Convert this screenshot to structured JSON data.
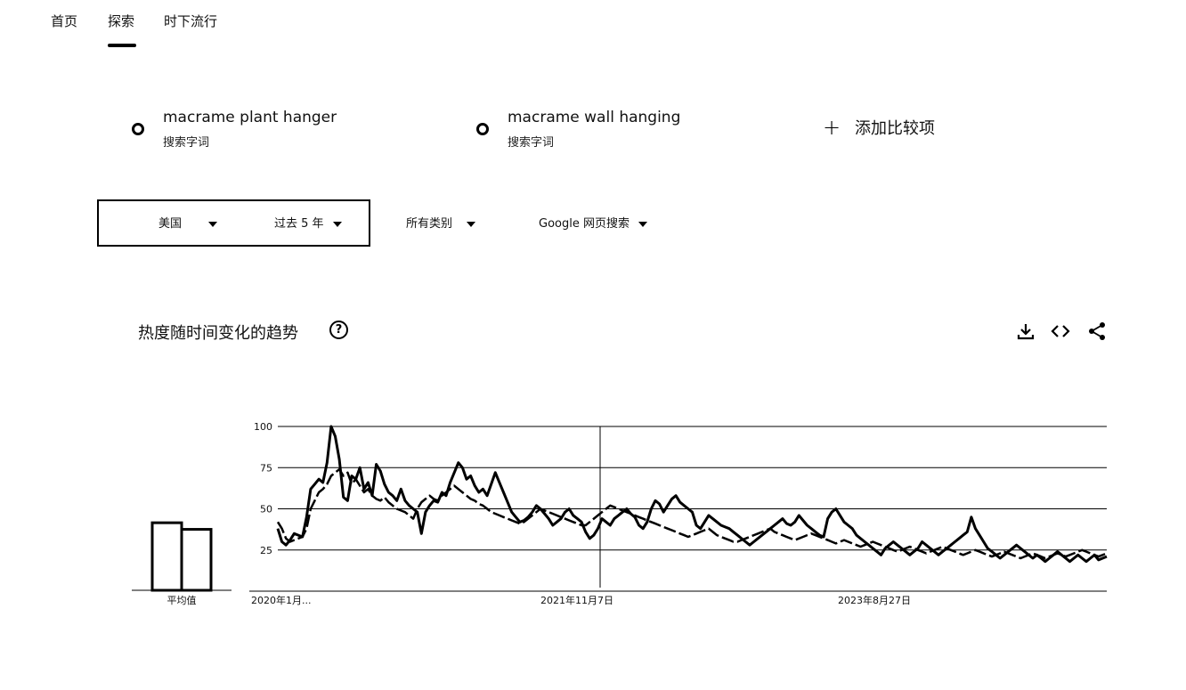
{
  "nav": {
    "home": "首页",
    "explore": "探索",
    "trending": "时下流行"
  },
  "terms": [
    {
      "name": "macrame plant hanger",
      "type": "搜索字词"
    },
    {
      "name": "macrame wall hanging",
      "type": "搜索字词"
    }
  ],
  "add_compare_label": "添加比较项",
  "filters": {
    "region": "美国",
    "time": "过去 5 年",
    "category": "所有类别",
    "search_type": "Google 网页搜索"
  },
  "section_title": "热度随时间变化的趋势",
  "help_symbol": "?",
  "icons": {
    "download": "download-icon",
    "embed": "embed-icon",
    "share": "share-icon"
  },
  "chart_data": {
    "type": "line",
    "title": "",
    "ylim": [
      0,
      100
    ],
    "y_ticks": [
      "100",
      "75",
      "50",
      "25"
    ],
    "x_tick_labels": [
      "2020年1月...",
      "2021年11月7日",
      "2023年8月27日"
    ],
    "average_label": "平均值",
    "averages": [
      {
        "series": "macrame plant hanger",
        "value": 41
      },
      {
        "series": "macrame wall hanging",
        "value": 37
      }
    ],
    "series": [
      {
        "name": "macrame plant hanger",
        "style": "solid",
        "values": [
          38,
          30,
          28,
          31,
          35,
          34,
          33,
          45,
          62,
          65,
          68,
          66,
          78,
          100,
          94,
          80,
          57,
          55,
          70,
          68,
          75,
          62,
          66,
          58,
          77,
          73,
          65,
          60,
          58,
          55,
          62,
          55,
          52,
          50,
          48,
          35,
          48,
          52,
          55,
          54,
          60,
          58,
          66,
          72,
          78,
          75,
          68,
          70,
          64,
          60,
          62,
          58,
          65,
          72,
          66,
          60,
          54,
          48,
          45,
          42,
          43,
          45,
          48,
          52,
          50,
          47,
          44,
          40,
          42,
          44,
          48,
          50,
          46,
          44,
          42,
          36,
          32,
          34,
          38,
          44,
          42,
          40,
          44,
          46,
          48,
          50,
          47,
          45,
          40,
          38,
          42,
          50,
          55,
          53,
          48,
          52,
          56,
          58,
          54,
          52,
          50,
          48,
          40,
          38,
          42,
          46,
          44,
          42,
          40,
          39,
          38,
          36,
          34,
          32,
          30,
          28,
          30,
          32,
          34,
          36,
          38,
          40,
          42,
          44,
          41,
          40,
          42,
          46,
          43,
          40,
          38,
          36,
          34,
          33,
          44,
          48,
          50,
          46,
          42,
          40,
          38,
          34,
          32,
          30,
          28,
          26,
          24,
          22,
          26,
          28,
          30,
          28,
          26,
          24,
          22,
          24,
          26,
          30,
          28,
          26,
          24,
          22,
          24,
          26,
          28,
          30,
          32,
          34,
          36,
          45,
          38,
          34,
          30,
          26,
          24,
          22,
          20,
          22,
          24,
          26,
          28,
          26,
          24,
          22,
          20,
          22,
          20,
          18,
          20,
          22,
          24,
          22,
          20,
          18,
          20,
          22,
          20,
          18,
          20,
          22,
          19,
          20,
          21
        ]
      },
      {
        "name": "macrame wall hanging",
        "style": "dashed",
        "values": [
          42,
          38,
          32,
          30,
          31,
          32,
          33,
          38,
          50,
          55,
          60,
          62,
          65,
          70,
          72,
          74,
          70,
          72,
          65,
          68,
          64,
          60,
          62,
          58,
          56,
          55,
          57,
          54,
          52,
          50,
          49,
          48,
          46,
          44,
          50,
          54,
          56,
          58,
          56,
          55,
          58,
          60,
          62,
          64,
          62,
          60,
          58,
          56,
          55,
          53,
          52,
          50,
          48,
          47,
          46,
          45,
          44,
          43,
          42,
          41,
          42,
          44,
          46,
          48,
          50,
          49,
          48,
          47,
          46,
          45,
          44,
          43,
          42,
          41,
          40,
          40,
          42,
          44,
          46,
          48,
          50,
          52,
          51,
          50,
          49,
          48,
          47,
          46,
          45,
          44,
          43,
          42,
          41,
          40,
          39,
          38,
          37,
          36,
          35,
          34,
          33,
          34,
          35,
          36,
          37,
          38,
          36,
          34,
          33,
          32,
          31,
          30,
          30,
          31,
          32,
          33,
          34,
          35,
          36,
          37,
          38,
          36,
          35,
          34,
          33,
          32,
          31,
          32,
          33,
          34,
          35,
          34,
          33,
          32,
          31,
          30,
          29,
          30,
          31,
          30,
          29,
          28,
          27,
          28,
          29,
          30,
          29,
          28,
          27,
          26,
          25,
          24,
          25,
          26,
          27,
          26,
          25,
          24,
          23,
          24,
          25,
          26,
          27,
          26,
          25,
          24,
          23,
          22,
          23,
          24,
          25,
          24,
          23,
          22,
          21,
          22,
          23,
          24,
          23,
          22,
          21,
          20,
          21,
          22,
          23,
          22,
          21,
          20,
          21,
          22,
          23,
          22,
          21,
          22,
          23,
          24,
          25,
          24,
          23,
          22,
          21,
          22,
          23
        ]
      }
    ]
  }
}
